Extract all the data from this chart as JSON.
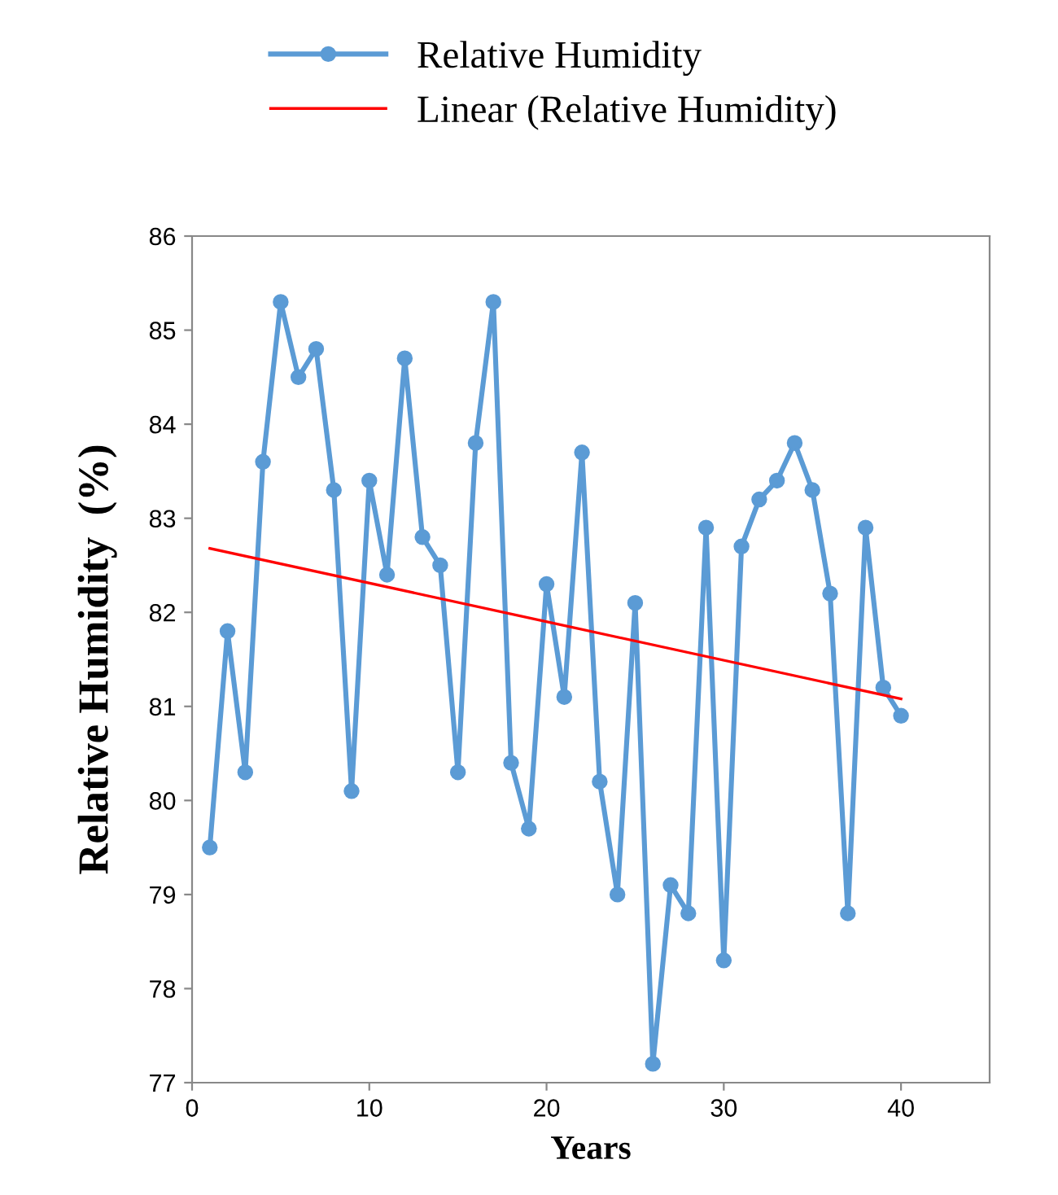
{
  "chart_data": {
    "type": "line",
    "xlabel": "Years",
    "ylabel": "Relative Humidity  (%)",
    "xlim": [
      0,
      45
    ],
    "xticks": [
      0,
      10,
      20,
      30,
      40
    ],
    "ylim": [
      77,
      86
    ],
    "yticks": [
      77,
      78,
      79,
      80,
      81,
      82,
      83,
      84,
      85,
      86
    ],
    "grid": false,
    "legend": "top",
    "marker": "circle",
    "series": [
      {
        "name": "Relative Humidity",
        "color": "#5b9bd5",
        "x": [
          1,
          2,
          3,
          4,
          5,
          6,
          7,
          8,
          9,
          10,
          11,
          12,
          13,
          14,
          15,
          16,
          17,
          18,
          19,
          20,
          21,
          22,
          23,
          24,
          25,
          26,
          27,
          28,
          29,
          30,
          31,
          32,
          33,
          34,
          35,
          36,
          37,
          38,
          39,
          40
        ],
        "values": [
          79.5,
          81.8,
          80.3,
          83.6,
          85.3,
          84.5,
          84.8,
          83.3,
          80.1,
          83.4,
          82.4,
          84.7,
          82.8,
          82.5,
          80.3,
          83.8,
          85.3,
          80.4,
          79.7,
          82.3,
          81.1,
          83.7,
          80.2,
          79.0,
          82.1,
          77.2,
          79.1,
          78.8,
          82.9,
          78.3,
          82.7,
          83.2,
          83.4,
          83.8,
          83.3,
          82.2,
          78.8,
          82.9,
          81.2,
          80.9
        ]
      },
      {
        "name": "Linear (Relative Humidity)",
        "color": "#ff0000",
        "type": "line",
        "marker": "none",
        "x": [
          1,
          40
        ],
        "values": [
          82.68,
          81.08
        ]
      }
    ]
  }
}
